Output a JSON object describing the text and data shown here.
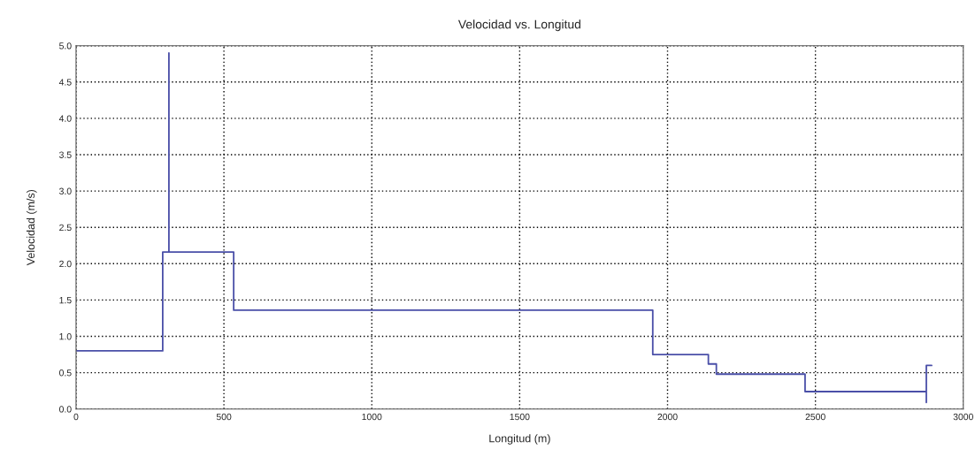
{
  "chart_data": {
    "type": "line",
    "title": "Velocidad vs. Longitud",
    "xlabel": "Longitud (m)",
    "ylabel": "Velocidad (m/s)",
    "x": [
      0,
      293,
      293,
      314,
      314,
      314,
      533,
      533,
      1950,
      1950,
      2138,
      2138,
      2165,
      2165,
      2465,
      2465,
      2875,
      2875,
      2875,
      2893
    ],
    "series": [
      {
        "color": "#4a4fa8",
        "values": [
          0.8,
          0.8,
          2.16,
          2.16,
          4.9,
          2.16,
          2.16,
          1.36,
          1.36,
          0.75,
          0.75,
          0.62,
          0.62,
          0.48,
          0.48,
          0.24,
          0.24,
          0.09,
          0.6,
          0.6
        ]
      }
    ],
    "xlim": [
      0,
      3000
    ],
    "xticks": [
      0,
      500,
      1000,
      1500,
      2000,
      2500,
      3000
    ],
    "ylim": [
      0,
      5
    ],
    "yticks": [
      {
        "value": 0,
        "label": "0.0"
      },
      {
        "value": 0.5,
        "label": "0.5"
      },
      {
        "value": 1,
        "label": "1.0"
      },
      {
        "value": 1.5,
        "label": "1.5"
      },
      {
        "value": 2,
        "label": "2.0"
      },
      {
        "value": 2.5,
        "label": "2.5"
      },
      {
        "value": 3,
        "label": "3.0"
      },
      {
        "value": 3.5,
        "label": "3.5"
      },
      {
        "value": 4,
        "label": "4.0"
      },
      {
        "value": 4.5,
        "label": "4.5"
      },
      {
        "value": 5,
        "label": "5.0"
      }
    ],
    "grid": true,
    "line_style": "solid",
    "legend": false
  }
}
